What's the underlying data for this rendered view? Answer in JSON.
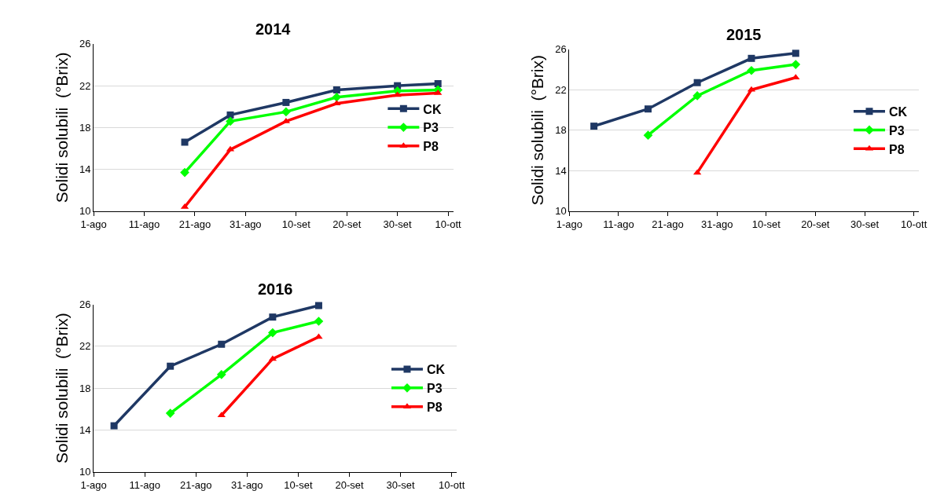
{
  "chart_data": [
    {
      "type": "line",
      "title": "2014",
      "ylabel": "Solidi solubili  (°Brix)",
      "ylim": [
        10,
        26
      ],
      "yticks": [
        10,
        14,
        18,
        22,
        26
      ],
      "xlim": [
        "--08-01",
        "--10-11"
      ],
      "xticks": [
        {
          "value": "--08-01",
          "label": "1-ago"
        },
        {
          "value": "--08-11",
          "label": "11-ago"
        },
        {
          "value": "--08-21",
          "label": "21-ago"
        },
        {
          "value": "--08-31",
          "label": "31-ago"
        },
        {
          "value": "--09-10",
          "label": "10-set"
        },
        {
          "value": "--09-20",
          "label": "20-set"
        },
        {
          "value": "--09-30",
          "label": "30-set"
        },
        {
          "value": "--10-10",
          "label": "10-ott"
        }
      ],
      "grid": "y",
      "legend": "right",
      "line_style": "solid",
      "x": [
        "--08-19",
        "--08-28",
        "--09-08",
        "--09-18",
        "--09-30",
        "--10-08"
      ],
      "series": [
        {
          "name": "CK",
          "color": "#1f3864",
          "marker": "square",
          "values": [
            16.6,
            19.2,
            20.4,
            21.6,
            22.0,
            22.2
          ]
        },
        {
          "name": "P3",
          "color": "#00ff00",
          "marker": "diamond",
          "values": [
            13.7,
            18.6,
            19.5,
            20.9,
            21.5,
            21.6
          ]
        },
        {
          "name": "P8",
          "color": "#ff0000",
          "marker": "triangle",
          "values": [
            10.4,
            15.9,
            18.6,
            20.3,
            21.1,
            21.3
          ]
        }
      ]
    },
    {
      "type": "line",
      "title": "2015",
      "ylabel": "Solidi solubili  (°Brix)",
      "ylim": [
        10,
        26
      ],
      "yticks": [
        10,
        14,
        18,
        22,
        26
      ],
      "xlim": [
        "--08-01",
        "--10-11"
      ],
      "xticks": [
        {
          "value": "--08-01",
          "label": "1-ago"
        },
        {
          "value": "--08-11",
          "label": "11-ago"
        },
        {
          "value": "--08-21",
          "label": "21-ago"
        },
        {
          "value": "--08-31",
          "label": "31-ago"
        },
        {
          "value": "--09-10",
          "label": "10-set"
        },
        {
          "value": "--09-20",
          "label": "20-set"
        },
        {
          "value": "--09-30",
          "label": "30-set"
        },
        {
          "value": "--10-10",
          "label": "10-ott"
        }
      ],
      "grid": "y",
      "legend": "right",
      "line_style": "solid",
      "series": [
        {
          "name": "CK",
          "color": "#1f3864",
          "marker": "square",
          "x": [
            "--08-06",
            "--08-17",
            "--08-27",
            "--09-07",
            "--09-16"
          ],
          "values": [
            18.4,
            20.1,
            22.7,
            25.1,
            25.6
          ]
        },
        {
          "name": "P3",
          "color": "#00ff00",
          "marker": "diamond",
          "x": [
            "--08-17",
            "--08-27",
            "--09-07",
            "--09-16"
          ],
          "values": [
            17.5,
            21.4,
            23.9,
            24.5
          ]
        },
        {
          "name": "P8",
          "color": "#ff0000",
          "marker": "triangle",
          "x": [
            "--08-27",
            "--09-07",
            "--09-16"
          ],
          "values": [
            13.8,
            22.0,
            23.2
          ]
        }
      ]
    },
    {
      "type": "line",
      "title": "2016",
      "ylabel": "Solidi solubili  (°Brix)",
      "ylim": [
        10,
        26
      ],
      "yticks": [
        10,
        14,
        18,
        22,
        26
      ],
      "xlim": [
        "--08-01",
        "--10-11"
      ],
      "xticks": [
        {
          "value": "--08-01",
          "label": "1-ago"
        },
        {
          "value": "--08-11",
          "label": "11-ago"
        },
        {
          "value": "--08-21",
          "label": "21-ago"
        },
        {
          "value": "--08-31",
          "label": "31-ago"
        },
        {
          "value": "--09-10",
          "label": "10-set"
        },
        {
          "value": "--09-20",
          "label": "20-set"
        },
        {
          "value": "--09-30",
          "label": "30-set"
        },
        {
          "value": "--10-10",
          "label": "10-ott"
        }
      ],
      "grid": "y",
      "legend": "right",
      "line_style": "solid",
      "series": [
        {
          "name": "CK",
          "color": "#1f3864",
          "marker": "square",
          "x": [
            "--08-05",
            "--08-16",
            "--08-26",
            "--09-05",
            "--09-14"
          ],
          "values": [
            14.4,
            20.1,
            22.2,
            24.8,
            25.9
          ]
        },
        {
          "name": "P3",
          "color": "#00ff00",
          "marker": "diamond",
          "x": [
            "--08-16",
            "--08-26",
            "--09-05",
            "--09-14"
          ],
          "values": [
            15.6,
            19.3,
            23.3,
            24.4
          ]
        },
        {
          "name": "P8",
          "color": "#ff0000",
          "marker": "triangle",
          "x": [
            "--08-26",
            "--09-05",
            "--09-14"
          ],
          "values": [
            15.4,
            20.8,
            22.9
          ]
        }
      ]
    }
  ]
}
